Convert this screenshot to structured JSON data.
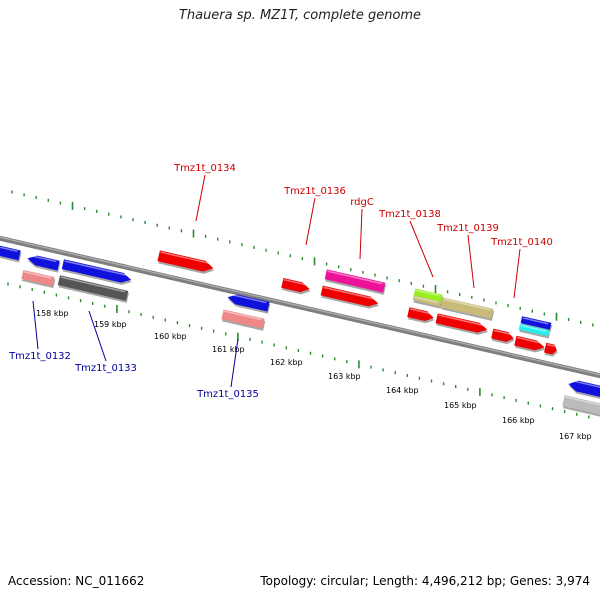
{
  "title": "Thauera sp. MZ1T, complete genome",
  "footer": {
    "accession": "Accession: NC_011662",
    "summary": "Topology: circular; Length: 4,496,212 bp; Genes: 3,974"
  },
  "colors": {
    "backbone": "#7f7f7f",
    "tick": "#2d8a2d",
    "label_top": "#cc0000",
    "label_bottom": "#000099",
    "gene_red": "#ee0000",
    "gene_blue": "#1111dd",
    "gene_pink": "#ee1199",
    "gene_salmon": "#ee8888",
    "gene_darkgray": "#555555",
    "gene_lightgray": "#bbbbbb",
    "gene_lime": "#99ee22",
    "gene_khaki": "#c8bb7a",
    "gene_cyan": "#22eeee"
  },
  "kbp_labels": [
    "158 kbp",
    "159 kbp",
    "160 kbp",
    "161 kbp",
    "162 kbp",
    "163 kbp",
    "164 kbp",
    "165 kbp",
    "166 kbp",
    "167 kbp"
  ],
  "top_labels": [
    "Tmz1t_0134",
    "Tmz1t_0136",
    "rdgC",
    "Tmz1t_0138",
    "Tmz1t_0139",
    "Tmz1t_0140"
  ],
  "bottom_labels": [
    "Tmz1t_0132",
    "Tmz1t_0133",
    "Tmz1t_0135"
  ]
}
